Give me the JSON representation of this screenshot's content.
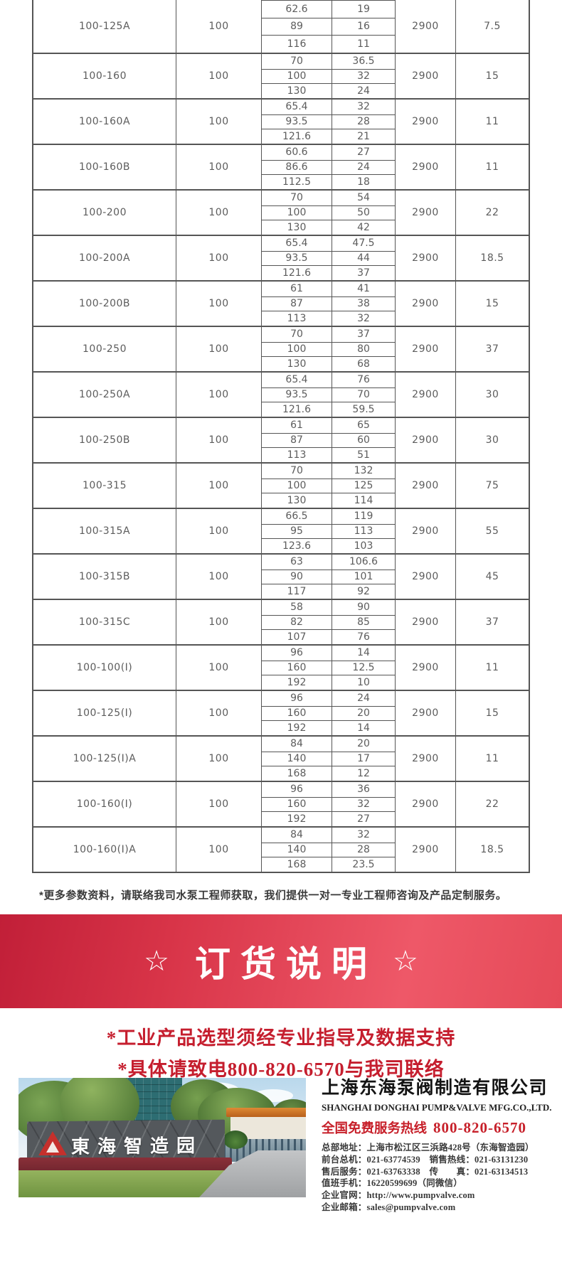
{
  "table": {
    "rows": [
      {
        "model": "100-125A",
        "flow": "100",
        "points": [
          [
            "62.6",
            "19"
          ],
          [
            "89",
            "16"
          ],
          [
            "116",
            "11"
          ]
        ],
        "speed": "2900",
        "power": "7.5"
      },
      {
        "model": "100-160",
        "flow": "100",
        "points": [
          [
            "70",
            "36.5"
          ],
          [
            "100",
            "32"
          ],
          [
            "130",
            "24"
          ]
        ],
        "speed": "2900",
        "power": "15"
      },
      {
        "model": "100-160A",
        "flow": "100",
        "points": [
          [
            "65.4",
            "32"
          ],
          [
            "93.5",
            "28"
          ],
          [
            "121.6",
            "21"
          ]
        ],
        "speed": "2900",
        "power": "11"
      },
      {
        "model": "100-160B",
        "flow": "100",
        "points": [
          [
            "60.6",
            "27"
          ],
          [
            "86.6",
            "24"
          ],
          [
            "112.5",
            "18"
          ]
        ],
        "speed": "2900",
        "power": "11"
      },
      {
        "model": "100-200",
        "flow": "100",
        "points": [
          [
            "70",
            "54"
          ],
          [
            "100",
            "50"
          ],
          [
            "130",
            "42"
          ]
        ],
        "speed": "2900",
        "power": "22"
      },
      {
        "model": "100-200A",
        "flow": "100",
        "points": [
          [
            "65.4",
            "47.5"
          ],
          [
            "93.5",
            "44"
          ],
          [
            "121.6",
            "37"
          ]
        ],
        "speed": "2900",
        "power": "18.5"
      },
      {
        "model": "100-200B",
        "flow": "100",
        "points": [
          [
            "61",
            "41"
          ],
          [
            "87",
            "38"
          ],
          [
            "113",
            "32"
          ]
        ],
        "speed": "2900",
        "power": "15"
      },
      {
        "model": "100-250",
        "flow": "100",
        "points": [
          [
            "70",
            "37"
          ],
          [
            "100",
            "80"
          ],
          [
            "130",
            "68"
          ]
        ],
        "speed": "2900",
        "power": "37"
      },
      {
        "model": "100-250A",
        "flow": "100",
        "points": [
          [
            "65.4",
            "76"
          ],
          [
            "93.5",
            "70"
          ],
          [
            "121.6",
            "59.5"
          ]
        ],
        "speed": "2900",
        "power": "30"
      },
      {
        "model": "100-250B",
        "flow": "100",
        "points": [
          [
            "61",
            "65"
          ],
          [
            "87",
            "60"
          ],
          [
            "113",
            "51"
          ]
        ],
        "speed": "2900",
        "power": "30"
      },
      {
        "model": "100-315",
        "flow": "100",
        "points": [
          [
            "70",
            "132"
          ],
          [
            "100",
            "125"
          ],
          [
            "130",
            "114"
          ]
        ],
        "speed": "2900",
        "power": "75"
      },
      {
        "model": "100-315A",
        "flow": "100",
        "points": [
          [
            "66.5",
            "119"
          ],
          [
            "95",
            "113"
          ],
          [
            "123.6",
            "103"
          ]
        ],
        "speed": "2900",
        "power": "55"
      },
      {
        "model": "100-315B",
        "flow": "100",
        "points": [
          [
            "63",
            "106.6"
          ],
          [
            "90",
            "101"
          ],
          [
            "117",
            "92"
          ]
        ],
        "speed": "2900",
        "power": "45"
      },
      {
        "model": "100-315C",
        "flow": "100",
        "points": [
          [
            "58",
            "90"
          ],
          [
            "82",
            "85"
          ],
          [
            "107",
            "76"
          ]
        ],
        "speed": "2900",
        "power": "37"
      },
      {
        "model": "100-100(I)",
        "flow": "100",
        "points": [
          [
            "96",
            "14"
          ],
          [
            "160",
            "12.5"
          ],
          [
            "192",
            "10"
          ]
        ],
        "speed": "2900",
        "power": "11"
      },
      {
        "model": "100-125(I)",
        "flow": "100",
        "points": [
          [
            "96",
            "24"
          ],
          [
            "160",
            "20"
          ],
          [
            "192",
            "14"
          ]
        ],
        "speed": "2900",
        "power": "15"
      },
      {
        "model": "100-125(I)A",
        "flow": "100",
        "points": [
          [
            "84",
            "20"
          ],
          [
            "140",
            "17"
          ],
          [
            "168",
            "12"
          ]
        ],
        "speed": "2900",
        "power": "11"
      },
      {
        "model": "100-160(I)",
        "flow": "100",
        "points": [
          [
            "96",
            "36"
          ],
          [
            "160",
            "32"
          ],
          [
            "192",
            "27"
          ]
        ],
        "speed": "2900",
        "power": "22"
      },
      {
        "model": "100-160(I)A",
        "flow": "100",
        "points": [
          [
            "84",
            "32"
          ],
          [
            "140",
            "28"
          ],
          [
            "168",
            "23.5"
          ]
        ],
        "speed": "2900",
        "power": "18.5"
      }
    ]
  },
  "note": "*更多参数资料，请联络我司水泵工程师获取，我们提供一对一专业工程师咨询及产品定制服务。",
  "banner": {
    "star_left": "☆",
    "title": "订货说明",
    "star_right": "☆",
    "bg_color_dark": "#c11f38",
    "bg_color_light": "#ee5868"
  },
  "notices": {
    "line1": "*工业产品选型须经专业指导及数据支持",
    "line2": "*具体请致电800-820-6570与我司联络",
    "text_color": "#c51e2e"
  },
  "footer": {
    "photo": {
      "sign_text": "東海智造园"
    },
    "company_cn": "上海东海泵阀制造有限公司",
    "company_en": "SHANGHAI DONGHAI PUMP&VALVE MFG.CO.,LTD.",
    "hotline_label": "全国免费服务热线",
    "hotline_number": "800-820-6570",
    "hotline_color": "#c7202a",
    "info_lines": [
      "总部地址：上海市松江区三浜路428号（东海智造园）",
      "前台总机：021-63774539　销售热线：021-63131230",
      "售后服务：021-63763338　传　　真：021-63134513",
      "值班手机：16220599699（同微信）",
      "企业官网：http://www.pumpvalve.com",
      "企业邮箱：sales@pumpvalve.com"
    ]
  }
}
